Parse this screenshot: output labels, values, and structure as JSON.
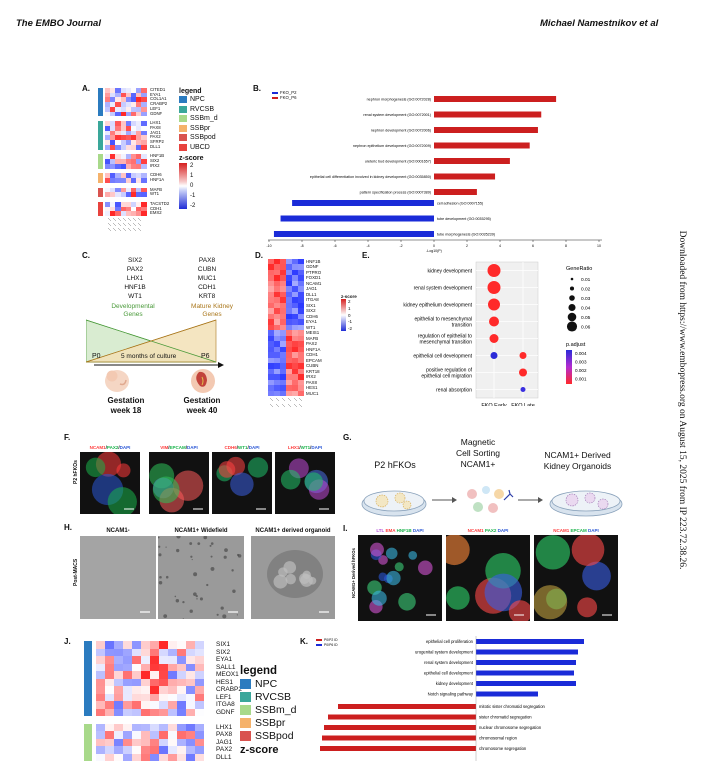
{
  "header": {
    "journal": "The EMBO Journal",
    "authors": "Michael Namestnikov et al"
  },
  "side_note": "Downloaded from https://www.embopress.org on August 15, 2025 from IP 223.72.38.26.",
  "panel_labels": {
    "A": "A.",
    "B": "B.",
    "C": "C.",
    "D": "D.",
    "E": "E.",
    "F": "F.",
    "G": "G.",
    "H": "H.",
    "I": "I.",
    "J": "J.",
    "K": "K."
  },
  "panelA": {
    "genes": [
      "CITED1",
      "EYA1",
      "COL1A1",
      "CRABP2",
      "LEF1",
      "GDNF",
      "",
      "LHX1",
      "PAX8",
      "JAG1",
      "PAX2",
      "SFRP2",
      "DLL1",
      "",
      "HNF1B",
      "SIX2",
      "IRX2",
      "",
      "CDH6",
      "HNF1A",
      "",
      "MAFB",
      "WT1",
      "",
      "TACSTD2",
      "CDH1",
      "EMX2"
    ],
    "legend_title": "legend",
    "legend": [
      {
        "label": "NPC",
        "color": "#2b7bbf"
      },
      {
        "label": "RVCSB",
        "color": "#3aa79a"
      },
      {
        "label": "SSBm_d",
        "color": "#a8d98a"
      },
      {
        "label": "SSBpr",
        "color": "#f5b26b"
      },
      {
        "label": "SSBpod",
        "color": "#d9534f"
      },
      {
        "label": "UBCD",
        "color": "#e8433e"
      }
    ],
    "zscore_title": "z-score",
    "zscore_ticks": [
      "2",
      "1",
      "0",
      "-1",
      "-2"
    ]
  },
  "panelB": {
    "legend": [
      "FKO_P2",
      "FKO_P6"
    ],
    "xaxis": "-Log10(P)",
    "ticks": [
      "-10",
      "-8",
      "-6",
      "-4",
      "-2",
      "0",
      "2",
      "4",
      "6",
      "8",
      "10"
    ],
    "terms_red": [
      {
        "label": "nephron morphogenesis (GO:0072028)",
        "value": 7.4
      },
      {
        "label": "renal system development (GO:0072001)",
        "value": 6.5
      },
      {
        "label": "nephron development (GO:0072006)",
        "value": 6.3
      },
      {
        "label": "nephron epithelium development (GO:0072009)",
        "value": 5.8
      },
      {
        "label": "ureteric bud development (GO:0001657)",
        "value": 4.6
      },
      {
        "label": "epithelial cell differentiation involved in kidney development (GO:0035850)",
        "value": 3.7
      },
      {
        "label": "pattern specification process (GO:0007389)",
        "value": 2.6
      }
    ],
    "terms_blue": [
      {
        "label": "cell adhesion (GO:0007155)",
        "value": -8.6
      },
      {
        "label": "tube development (GO:0035295)",
        "value": -9.3
      },
      {
        "label": "tube morphogenesis (GO:0035239)",
        "value": -9.7
      }
    ]
  },
  "panelC": {
    "left_genes": [
      "SIX2",
      "PAX2",
      "LHX1",
      "HNF1B",
      "WT1"
    ],
    "right_genes": [
      "PAX8",
      "CUBN",
      "MUC1",
      "CDH1",
      "KRT8"
    ],
    "dev_label": "Developmental\nGenes",
    "mature_label": "Mature Kidney\nGenes",
    "p0": "P0",
    "p6": "P6",
    "culture": "5 months of culture",
    "gest_left": "Gestation\nweek 18",
    "gest_right": "Gestation\nweek 40"
  },
  "panelD": {
    "genes": [
      "HNF1B",
      "GDNF",
      "PTPRO",
      "FOXD1",
      "NCAM1",
      "JAG1",
      "DLL1",
      "ITGA8",
      "SIX1",
      "SIX2",
      "CDH6",
      "EYA1",
      "WT1",
      "MEIS1",
      "MAFB",
      "PAX2",
      "HNF1A",
      "CDH1",
      "EPCAM",
      "CUBN",
      "KRT18",
      "IRX2",
      "PAX8",
      "HES1",
      "MUC1"
    ],
    "zscore_title": "z-score",
    "ticks": [
      "2",
      "1",
      "0",
      "-1",
      "-2"
    ]
  },
  "panelE": {
    "terms": [
      "kidney development",
      "renal system development",
      "kidney epithelium development",
      "epithelial to mesenchymal\ntransition",
      "regulation of epithelial to\nmesenchymal transition",
      "epithelial cell development",
      "positive regulation of\nepithelial cell migration",
      "renal absorption"
    ],
    "xcats": [
      "FKO Early",
      "FKO Late"
    ],
    "generatio_title": "GeneRatio",
    "generatio": [
      "0.01",
      "0.02",
      "0.03",
      "0.04",
      "0.05",
      "0.06"
    ],
    "padj_title": "p.adjust",
    "padj": [
      "0.004",
      "0.003",
      "0.002",
      "0.001"
    ]
  },
  "panelF": {
    "side": "P2 hFKOs",
    "captions": [
      {
        "a": "NCAM1",
        "b": "PAX2",
        "c": "DAPI",
        "ca": "#ff3b3b",
        "cb": "#19b34a",
        "cc": "#2a57d6"
      },
      {
        "a": "VIM",
        "b": "EPCAM",
        "c": "DAPI",
        "ca": "#ff3b3b",
        "cb": "#19b34a",
        "cc": "#2a57d6"
      },
      {
        "a": "CDH6",
        "b": "WT1",
        "c": "DAPI",
        "ca": "#ff3b3b",
        "cb": "#19b34a",
        "cc": "#2a57d6"
      },
      {
        "a": "LHX1",
        "b": "WT1",
        "c": "DAPI",
        "ca": "#ff3b3b",
        "cb": "#19b34a",
        "cc": "#2a57d6"
      }
    ]
  },
  "panelG": {
    "left": "P2 hFKOs",
    "mid": "Magnetic\nCell Sorting\nNCAM1+",
    "right": "NCAM1+ Derived\nKidney Organoids"
  },
  "panelH": {
    "side": "Post-MACS",
    "captions": [
      "NCAM1-",
      "NCAM1+ Widefield",
      "NCAM1+ derived organoid"
    ]
  },
  "panelI": {
    "side": "NCAM1+ Derived hFKOs",
    "captions": [
      [
        {
          "t": "LTL",
          "c": "#b44dd8"
        },
        {
          "t": "EMA",
          "c": "#ff3b3b"
        },
        {
          "t": "HNF1B",
          "c": "#19b34a"
        },
        {
          "t": "DAPI",
          "c": "#2a57d6"
        }
      ],
      [
        {
          "t": "NCAM1",
          "c": "#ff3b3b"
        },
        {
          "t": "PAX2",
          "c": "#19b34a"
        },
        {
          "t": "DAPI",
          "c": "#2a57d6"
        }
      ],
      [
        {
          "t": "NCAM1",
          "c": "#ff3b3b"
        },
        {
          "t": "EPCAM",
          "c": "#19b34a"
        },
        {
          "t": "DAPI",
          "c": "#2a57d6"
        }
      ]
    ]
  },
  "panelJ": {
    "genes": [
      "SIX1",
      "SIX2",
      "EYA1",
      "SALL1",
      "MEOX1",
      "HES1",
      "CRABP2",
      "LEF1",
      "ITGA8",
      "GDNF",
      "",
      "LHX1",
      "PAX8",
      "JAG1",
      "PAX2",
      "DLL1"
    ],
    "legend_title": "legend",
    "legend": [
      {
        "label": "NPC",
        "color": "#2b7bbf"
      },
      {
        "label": "RVCSB",
        "color": "#3aa79a"
      },
      {
        "label": "SSBm_d",
        "color": "#a8d98a"
      },
      {
        "label": "SSBpr",
        "color": "#f5b26b"
      },
      {
        "label": "SSBpod",
        "color": "#d9534f"
      }
    ],
    "zscore_title": "z-score"
  },
  "panelK": {
    "legend": [
      "P0/P2 ID",
      "P0/P6 ID"
    ],
    "terms_blue": [
      "epithelial cell proliferation",
      "urogenital system development",
      "renal system development",
      "epithelial cell development",
      "kidney development",
      "Notch signaling pathway"
    ],
    "terms_red": [
      "mitotic sister chromatid segregation",
      "sister chromatid segregation",
      "nuclear chromosome segregation",
      "chromosomal region",
      "chromosome segregation"
    ]
  }
}
